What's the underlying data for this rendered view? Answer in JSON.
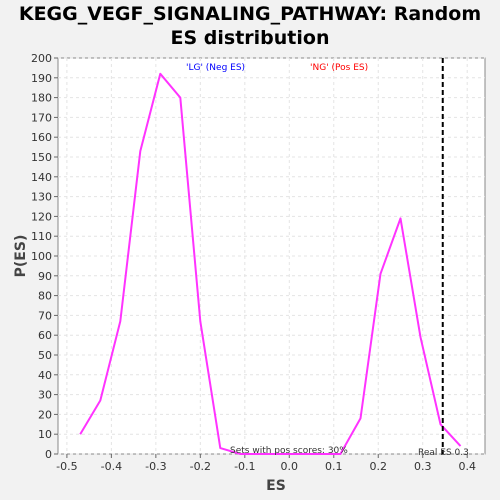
{
  "chart_data": {
    "type": "line",
    "title_line1": "KEGG_VEGF_SIGNALING_PATHWAY: Random",
    "title_line2": "ES distribution",
    "xlabel": "ES",
    "ylabel": "P(ES)",
    "xlim": [
      -0.52,
      0.44
    ],
    "ylim": [
      0,
      200
    ],
    "x_ticks": [
      -0.5,
      -0.4,
      -0.3,
      -0.2,
      -0.1,
      0.0,
      0.1,
      0.2,
      0.3,
      0.4
    ],
    "x_tick_labels": [
      "-0.5",
      "-0.4",
      "-0.3",
      "-0.2",
      "-0.1",
      "0.0",
      "0.1",
      "0.2",
      "0.3",
      "0.4"
    ],
    "y_ticks": [
      0,
      10,
      20,
      30,
      40,
      50,
      60,
      70,
      80,
      90,
      100,
      110,
      120,
      130,
      140,
      150,
      160,
      170,
      180,
      190,
      200
    ],
    "grid": true,
    "series": [
      {
        "color": "#ff33ff",
        "x": [
          -0.47,
          -0.425,
          -0.38,
          -0.335,
          -0.29,
          -0.245,
          -0.2,
          -0.155,
          -0.11,
          -0.065,
          -0.02,
          0.025,
          0.07,
          0.115,
          0.16,
          0.205,
          0.25,
          0.295,
          0.34,
          0.385
        ],
        "y": [
          10,
          27,
          67,
          153,
          192,
          180,
          67,
          3,
          0,
          0,
          0,
          0,
          0,
          0,
          18,
          91,
          119,
          59,
          15,
          4
        ]
      }
    ],
    "vline": {
      "x": 0.345,
      "color": "#000000",
      "style": "dashed"
    },
    "annotations": {
      "neg_label": "'LG' (Neg ES)",
      "neg_color": "#0000ff",
      "pos_label": "'NG' (Pos ES)",
      "pos_color": "#ff0000",
      "pos_scores": "Sets with pos scores: 30%",
      "real_es": "Real ES 0.3"
    }
  }
}
